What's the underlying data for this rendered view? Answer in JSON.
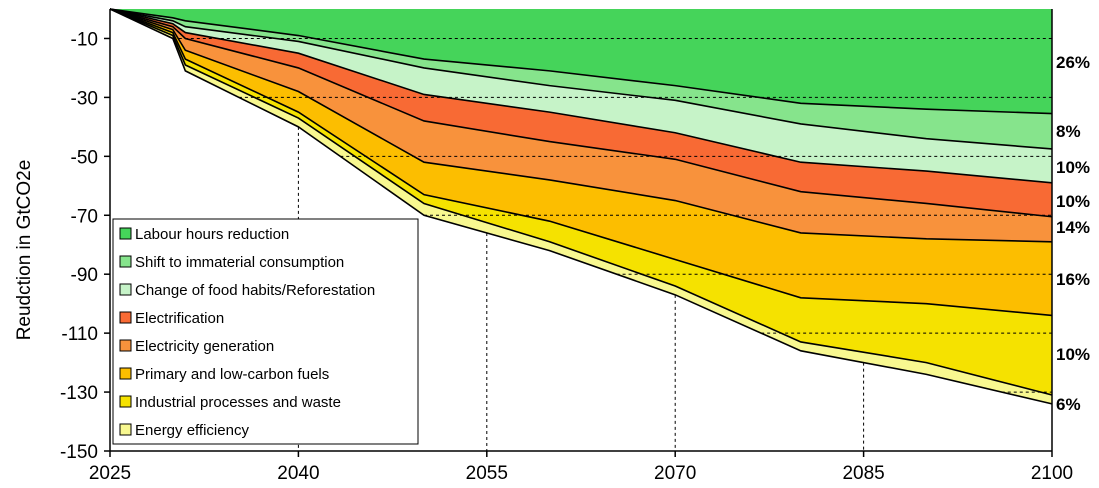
{
  "chart_data": {
    "type": "area",
    "ylabel": "Reudction in GtCO2e",
    "xlabel": "",
    "xlim": [
      2025,
      2100
    ],
    "ylim": [
      -150,
      0
    ],
    "x_ticks": [
      "2025",
      "2040",
      "2055",
      "2070",
      "2085",
      "2100"
    ],
    "y_ticks": [
      "-10",
      "-30",
      "-50",
      "-70",
      "-90",
      "-110",
      "-130",
      "-150"
    ],
    "grid": "dashed gridlines at x=2040,2055,2070,2085 and y=-10,-30,-50,-70,-90,-110,-130",
    "legend_position": "bottom-left inside plot",
    "x": [
      2025,
      2030,
      2031,
      2040,
      2050,
      2060,
      2070,
      2080,
      2090,
      2100
    ],
    "series": [
      {
        "name": "Labour hours reduction",
        "color": "#45d45a",
        "share_label": "26%",
        "cumulative": [
          0,
          -3,
          -4,
          -9,
          -17,
          -21,
          -26,
          -32,
          -34,
          -35.5
        ]
      },
      {
        "name": "Shift to immaterial consumption",
        "color": "#86e48c",
        "share_label": "8%",
        "cumulative": [
          0,
          -4,
          -6,
          -11,
          -20,
          -26,
          -31,
          -39,
          -44,
          -47.5
        ]
      },
      {
        "name": "Change of food habits/Reforestation",
        "color": "#c6f3c8",
        "share_label": "10%",
        "cumulative": [
          0,
          -5,
          -8,
          -15,
          -29,
          -35,
          -42,
          -52,
          -55,
          -59
        ]
      },
      {
        "name": "Electrification",
        "color": "#f86a34",
        "share_label": "10%",
        "cumulative": [
          0,
          -6,
          -10,
          -20,
          -38,
          -45,
          -51,
          -62,
          -66,
          -70.5
        ]
      },
      {
        "name": "Electricity generation",
        "color": "#f8923c",
        "share_label": "14%",
        "cumulative": [
          0,
          -7,
          -14,
          -28,
          -52,
          -58,
          -65,
          -76,
          -78,
          -79
        ]
      },
      {
        "name": "Primary and low-carbon fuels",
        "color": "#fcbe00",
        "share_label": "16%",
        "cumulative": [
          0,
          -8,
          -17,
          -35,
          -63,
          -72,
          -85,
          -98,
          -100,
          -104
        ]
      },
      {
        "name": "Industrial processes and waste",
        "color": "#f5e200",
        "share_label": "10%",
        "cumulative": [
          0,
          -9,
          -19,
          -37,
          -66,
          -79,
          -94,
          -113,
          -120,
          -131
        ]
      },
      {
        "name": "Energy efficiency",
        "color": "#f8f890",
        "share_label": "6%",
        "cumulative": [
          0,
          -10,
          -21,
          -40,
          -70,
          -82,
          -97,
          -116,
          -124,
          -134
        ]
      }
    ]
  }
}
